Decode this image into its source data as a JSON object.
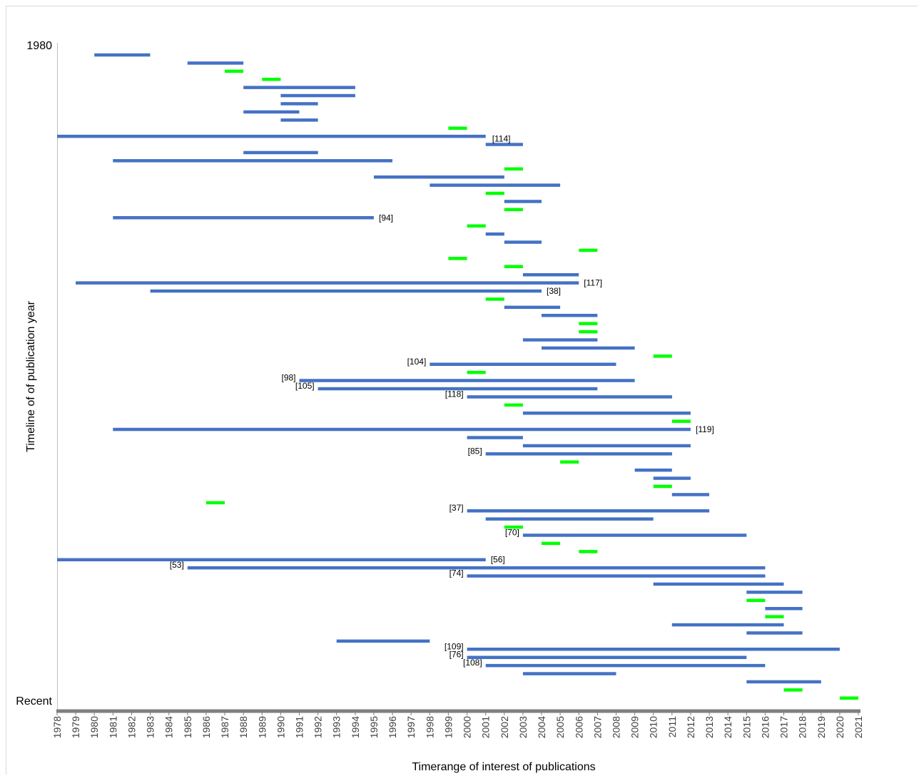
{
  "chart_data": {
    "type": "bar",
    "subtype": "horizontal-range-gantt",
    "title": "",
    "xlabel": "Timerange of interest of publications",
    "ylabel": "Timeline of of publication year",
    "y_top_label": "1980",
    "y_bottom_label": "Recent",
    "xlim": [
      1978,
      2021
    ],
    "x_ticks": [
      "1978",
      "1979",
      "1980",
      "1981",
      "1982",
      "1983",
      "1984",
      "1985",
      "1986",
      "1987",
      "1988",
      "1989",
      "1990",
      "1991",
      "1992",
      "1993",
      "1994",
      "1995",
      "1996",
      "1997",
      "1998",
      "1999",
      "2000",
      "2001",
      "2002",
      "2003",
      "2004",
      "2005",
      "2006",
      "2007",
      "2008",
      "2009",
      "2010",
      "2011",
      "2012",
      "2013",
      "2014",
      "2015",
      "2016",
      "2017",
      "2018",
      "2019",
      "2020",
      "2021"
    ],
    "grid": false,
    "legend": "none",
    "colors": {
      "range": "#4472c4",
      "single_year": "#00ff00",
      "axis": "#7f7f7f"
    },
    "ranges": [
      {
        "start": 1980,
        "end": 1983,
        "type": "range",
        "label": ""
      },
      {
        "start": 1985,
        "end": 1988,
        "type": "range",
        "label": ""
      },
      {
        "start": 1987,
        "end": 1988,
        "type": "single",
        "label": ""
      },
      {
        "start": 1989,
        "end": 1990,
        "type": "single",
        "label": ""
      },
      {
        "start": 1988,
        "end": 1994,
        "type": "range",
        "label": ""
      },
      {
        "start": 1990,
        "end": 1994,
        "type": "range",
        "label": ""
      },
      {
        "start": 1990,
        "end": 1992,
        "type": "range",
        "label": ""
      },
      {
        "start": 1988,
        "end": 1991,
        "type": "range",
        "label": ""
      },
      {
        "start": 1990,
        "end": 1992,
        "type": "range",
        "label": ""
      },
      {
        "start": 1999,
        "end": 2000,
        "type": "single",
        "label": ""
      },
      {
        "start": 1978,
        "end": 2001,
        "type": "range",
        "label": ""
      },
      {
        "start": 2001,
        "end": 2003,
        "type": "range",
        "label": "[114]",
        "label_pos": "top"
      },
      {
        "start": 1988,
        "end": 1992,
        "type": "range",
        "label": ""
      },
      {
        "start": 1981,
        "end": 1996,
        "type": "range",
        "label": ""
      },
      {
        "start": 2002,
        "end": 2003,
        "type": "single",
        "label": ""
      },
      {
        "start": 1995,
        "end": 2002,
        "type": "range",
        "label": ""
      },
      {
        "start": 1998,
        "end": 2005,
        "type": "range",
        "label": ""
      },
      {
        "start": 2001,
        "end": 2002,
        "type": "single",
        "label": ""
      },
      {
        "start": 2002,
        "end": 2004,
        "type": "range",
        "label": ""
      },
      {
        "start": 2002,
        "end": 2003,
        "type": "single",
        "label": ""
      },
      {
        "start": 1981,
        "end": 1995,
        "type": "range",
        "label": "[94]",
        "label_pos": "right"
      },
      {
        "start": 2000,
        "end": 2001,
        "type": "single",
        "label": ""
      },
      {
        "start": 2001,
        "end": 2002,
        "type": "range",
        "label": ""
      },
      {
        "start": 2002,
        "end": 2004,
        "type": "range",
        "label": ""
      },
      {
        "start": 2006,
        "end": 2007,
        "type": "single",
        "label": ""
      },
      {
        "start": 1999,
        "end": 2000,
        "type": "single",
        "label": ""
      },
      {
        "start": 2002,
        "end": 2003,
        "type": "single",
        "label": ""
      },
      {
        "start": 2003,
        "end": 2006,
        "type": "range",
        "label": ""
      },
      {
        "start": 1979,
        "end": 2006,
        "type": "range",
        "label": "[117]",
        "label_pos": "right"
      },
      {
        "start": 1983,
        "end": 2004,
        "type": "range",
        "label": "[38]",
        "label_pos": "right"
      },
      {
        "start": 2001,
        "end": 2002,
        "type": "single",
        "label": ""
      },
      {
        "start": 2002,
        "end": 2005,
        "type": "range",
        "label": ""
      },
      {
        "start": 2004,
        "end": 2007,
        "type": "range",
        "label": ""
      },
      {
        "start": 2006,
        "end": 2007,
        "type": "single",
        "label": ""
      },
      {
        "start": 2006,
        "end": 2007,
        "type": "single",
        "label": ""
      },
      {
        "start": 2003,
        "end": 2007,
        "type": "range",
        "label": ""
      },
      {
        "start": 2004,
        "end": 2009,
        "type": "range",
        "label": ""
      },
      {
        "start": 2010,
        "end": 2011,
        "type": "single",
        "label": ""
      },
      {
        "start": 1998,
        "end": 2008,
        "type": "range",
        "label": "[104]",
        "label_pos": "left"
      },
      {
        "start": 2000,
        "end": 2001,
        "type": "single",
        "label": ""
      },
      {
        "start": 1991,
        "end": 2009,
        "type": "range",
        "label": "[98]",
        "label_pos": "left"
      },
      {
        "start": 1992,
        "end": 2007,
        "type": "range",
        "label": "[105]",
        "label_pos": "left"
      },
      {
        "start": 2000,
        "end": 2011,
        "type": "range",
        "label": "[118]",
        "label_pos": "left"
      },
      {
        "start": 2002,
        "end": 2003,
        "type": "single",
        "label": ""
      },
      {
        "start": 2003,
        "end": 2012,
        "type": "range",
        "label": ""
      },
      {
        "start": 2011,
        "end": 2012,
        "type": "single",
        "label": ""
      },
      {
        "start": 1981,
        "end": 2012,
        "type": "range",
        "label": "[119]",
        "label_pos": "right"
      },
      {
        "start": 2000,
        "end": 2003,
        "type": "range",
        "label": ""
      },
      {
        "start": 2003,
        "end": 2012,
        "type": "range",
        "label": ""
      },
      {
        "start": 2001,
        "end": 2011,
        "type": "range",
        "label": "[85]",
        "label_pos": "left"
      },
      {
        "start": 2005,
        "end": 2006,
        "type": "single",
        "label": ""
      },
      {
        "start": 2009,
        "end": 2011,
        "type": "range",
        "label": ""
      },
      {
        "start": 2010,
        "end": 2012,
        "type": "range",
        "label": ""
      },
      {
        "start": 2010,
        "end": 2011,
        "type": "single",
        "label": ""
      },
      {
        "start": 2011,
        "end": 2013,
        "type": "range",
        "label": ""
      },
      {
        "start": 1986,
        "end": 1987,
        "type": "single",
        "label": ""
      },
      {
        "start": 2000,
        "end": 2013,
        "type": "range",
        "label": "[37]",
        "label_pos": "left"
      },
      {
        "start": 2001,
        "end": 2010,
        "type": "range",
        "label": ""
      },
      {
        "start": 2002,
        "end": 2003,
        "type": "single",
        "label": ""
      },
      {
        "start": 2003,
        "end": 2015,
        "type": "range",
        "label": "[70]",
        "label_pos": "left"
      },
      {
        "start": 2004,
        "end": 2005,
        "type": "single",
        "label": ""
      },
      {
        "start": 2006,
        "end": 2007,
        "type": "single",
        "label": ""
      },
      {
        "start": 1978,
        "end": 2001,
        "type": "range",
        "label": "[56]",
        "label_pos": "right"
      },
      {
        "start": 1985,
        "end": 2016,
        "type": "range",
        "label": "[53]",
        "label_pos": "left"
      },
      {
        "start": 2000,
        "end": 2016,
        "type": "range",
        "label": "[74]",
        "label_pos": "left"
      },
      {
        "start": 2010,
        "end": 2017,
        "type": "range",
        "label": ""
      },
      {
        "start": 2015,
        "end": 2018,
        "type": "range",
        "label": ""
      },
      {
        "start": 2015,
        "end": 2016,
        "type": "single",
        "label": ""
      },
      {
        "start": 2016,
        "end": 2018,
        "type": "range",
        "label": ""
      },
      {
        "start": 2016,
        "end": 2017,
        "type": "single",
        "label": ""
      },
      {
        "start": 2011,
        "end": 2017,
        "type": "range",
        "label": ""
      },
      {
        "start": 2015,
        "end": 2018,
        "type": "range",
        "label": ""
      },
      {
        "start": 1993,
        "end": 1998,
        "type": "range",
        "label": ""
      },
      {
        "start": 2000,
        "end": 2020,
        "type": "range",
        "label": "[109]",
        "label_pos": "left"
      },
      {
        "start": 2000,
        "end": 2015,
        "type": "range",
        "label": "[76]",
        "label_pos": "left"
      },
      {
        "start": 2001,
        "end": 2016,
        "type": "range",
        "label": "[108]",
        "label_pos": "left"
      },
      {
        "start": 2003,
        "end": 2008,
        "type": "range",
        "label": ""
      },
      {
        "start": 2015,
        "end": 2019,
        "type": "range",
        "label": ""
      },
      {
        "start": 2017,
        "end": 2018,
        "type": "single",
        "label": ""
      },
      {
        "start": 2020,
        "end": 2021,
        "type": "single",
        "label": ""
      }
    ]
  }
}
